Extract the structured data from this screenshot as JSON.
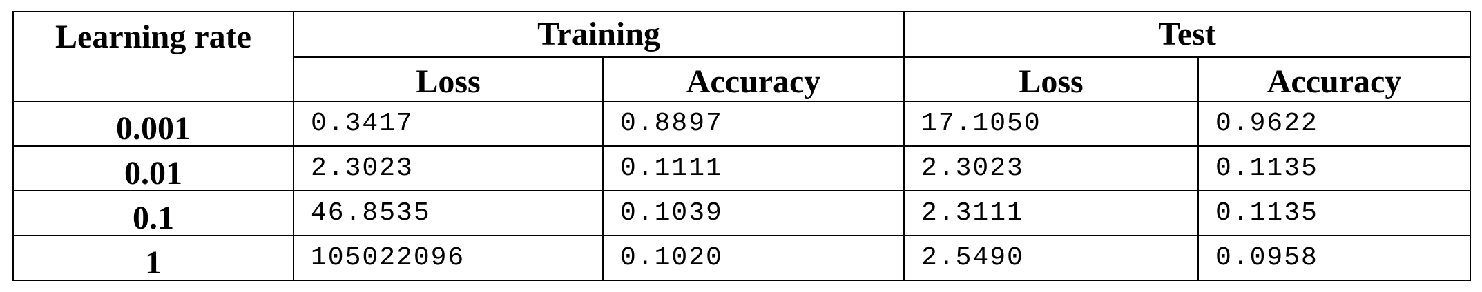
{
  "table": {
    "header": {
      "learning_rate": "Learning rate",
      "training": "Training",
      "test": "Test",
      "training_loss": "Loss",
      "training_accuracy": "Accuracy",
      "test_loss": "Loss",
      "test_accuracy": "Accuracy"
    },
    "rows": [
      {
        "lr": "0.001",
        "train_loss": "0.3417",
        "train_acc": "0.8897",
        "test_loss": "17.1050",
        "test_acc": "0.9622"
      },
      {
        "lr": "0.01",
        "train_loss": "2.3023",
        "train_acc": "0.1111",
        "test_loss": "2.3023",
        "test_acc": "0.1135"
      },
      {
        "lr": "0.1",
        "train_loss": "46.8535",
        "train_acc": "0.1039",
        "test_loss": "2.3111",
        "test_acc": "0.1135"
      },
      {
        "lr": "1",
        "train_loss": "105022096",
        "train_acc": "0.1020",
        "test_loss": "2.5490",
        "test_acc": "0.0958"
      }
    ]
  }
}
